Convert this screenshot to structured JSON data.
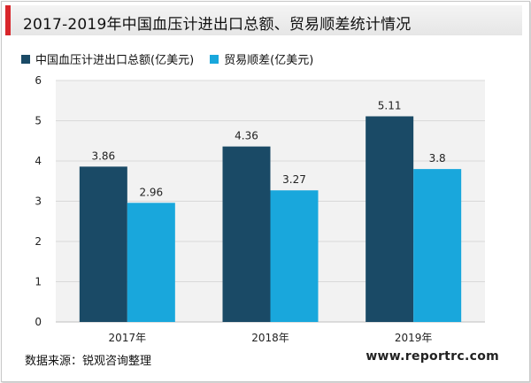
{
  "chart_data": {
    "type": "bar",
    "title": "2017-2019年中国血压计进出口总额、贸易顺差统计情况",
    "categories": [
      "2017年",
      "2018年",
      "2019年"
    ],
    "series": [
      {
        "name": "中国血压计进出口总额(亿美元)",
        "values": [
          3.86,
          4.36,
          5.11
        ],
        "color": "#1a4a66"
      },
      {
        "name": "贸易顺差(亿美元)",
        "values": [
          2.96,
          3.27,
          3.8
        ],
        "color": "#19a7dc"
      }
    ],
    "value_labels": [
      [
        "3.86",
        "4.36",
        "5.11"
      ],
      [
        "2.96",
        "3.27",
        "3.8"
      ]
    ],
    "ylim": [
      0,
      6
    ],
    "yticks": [
      "0",
      "1",
      "2",
      "3",
      "4",
      "5",
      "6"
    ],
    "xlabel": "",
    "ylabel": "",
    "grid": true,
    "legend_position": "top-left"
  },
  "footer": {
    "source": "数据来源：锐观咨询整理",
    "website": "www.reportrc.com"
  },
  "colors": {
    "accent": "#d8262b",
    "plot_background": "#f2f2f2"
  }
}
